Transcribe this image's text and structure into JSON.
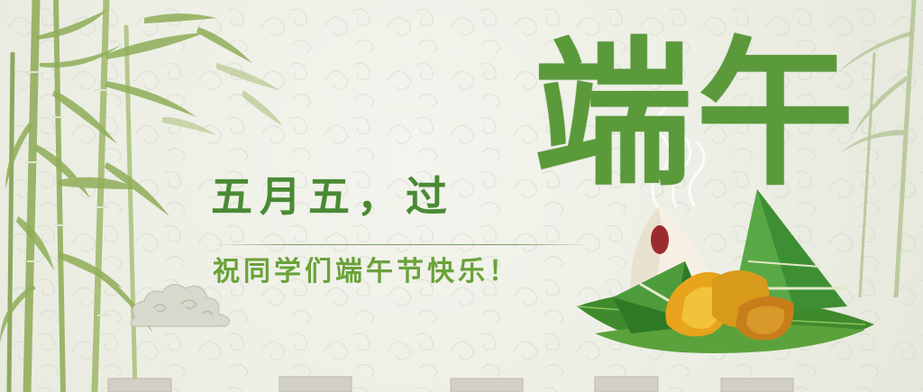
{
  "banner": {
    "title": "端午",
    "subtitle": "五月五，过",
    "greeting": "祝同学们端午节快乐！"
  },
  "colors": {
    "title_green": "#5a9a3a",
    "subtitle_green": "#4a8a34",
    "greeting_green": "#6aa23a",
    "bamboo_green": "#8aa85a",
    "background": "#eeeee7"
  }
}
